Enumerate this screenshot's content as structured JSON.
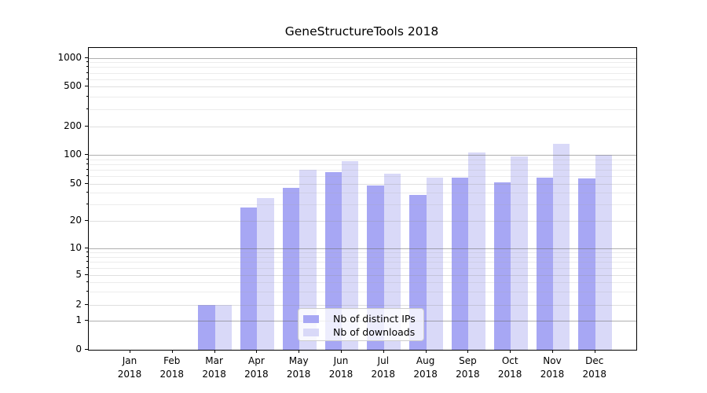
{
  "title": "GeneStructureTools 2018",
  "chart_data": {
    "type": "bar",
    "title": "GeneStructureTools 2018",
    "categories": [
      "Jan",
      "Feb",
      "Mar",
      "Apr",
      "May",
      "Jun",
      "Jul",
      "Aug",
      "Sep",
      "Oct",
      "Nov",
      "Dec"
    ],
    "year": "2018",
    "series": [
      {
        "name": "Nb of distinct IPs",
        "color": "#a7a7f4",
        "values": [
          0,
          0,
          2,
          28,
          45,
          66,
          48,
          38,
          58,
          52,
          58,
          57
        ]
      },
      {
        "name": "Nb of downloads",
        "color": "#d9d9f8",
        "values": [
          0,
          0,
          2,
          35,
          70,
          86,
          64,
          58,
          105,
          97,
          130,
          100
        ]
      }
    ],
    "xlabel": "",
    "ylabel": "",
    "yscale": "symlog",
    "y_ticks": [
      0,
      1,
      2,
      5,
      10,
      20,
      50,
      100,
      200,
      500,
      1000
    ],
    "y_minor_gridlines": [
      3,
      4,
      6,
      7,
      8,
      9,
      30,
      40,
      60,
      70,
      80,
      90,
      300,
      400,
      600,
      700,
      800,
      900
    ],
    "ylim": [
      0,
      1270
    ],
    "grid": "horizontal major (decades, solid gray) + labeled subs and log minors (faint), drawn above bars",
    "legend": {
      "position": "lower center",
      "entries": [
        "Nb of distinct IPs",
        "Nb of downloads"
      ]
    }
  },
  "colors": {
    "background": "#ffffff",
    "bar_distinct_ips": "#a7a7f4",
    "bar_downloads": "#d9d9f8",
    "grid_major": "#b5b5b5",
    "grid_sub": "#dfdfdf",
    "grid_minor": "#ececec",
    "spine": "#000000",
    "text": "#000000",
    "legend_border": "#cccccc"
  }
}
